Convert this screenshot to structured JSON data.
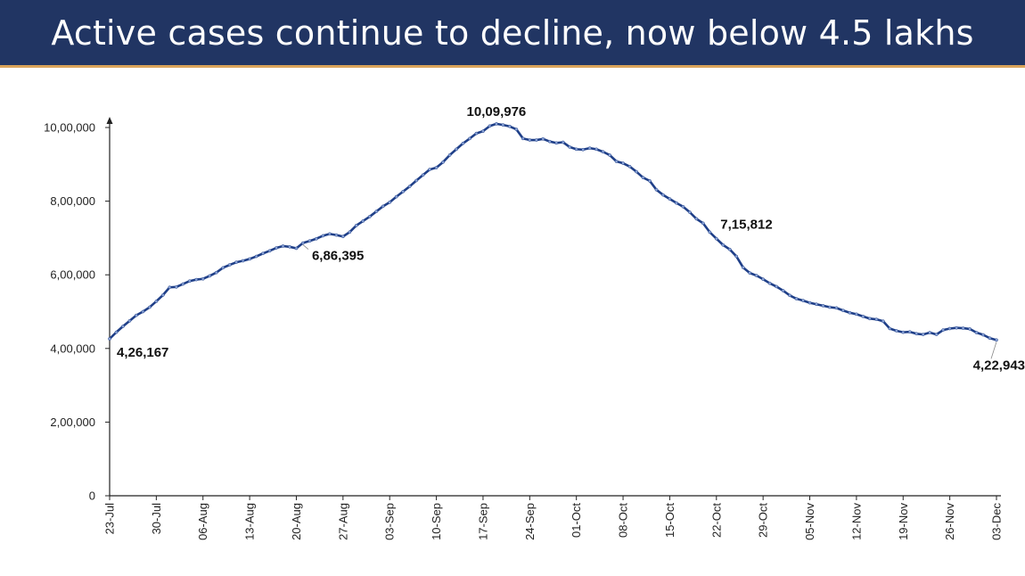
{
  "header": {
    "title": "Active cases continue to decline, now below 4.5 lakhs"
  },
  "colors": {
    "header_bg": "#213563",
    "header_accent": "#d9a35a",
    "line": "#1f3f88",
    "marker": "#8ea6d8"
  },
  "chart_data": {
    "type": "line",
    "title": "Active cases continue to decline, now below 4.5 lakhs",
    "xlabel": "",
    "ylabel": "",
    "ylim": [
      0,
      1000000
    ],
    "y_ticks": [
      0,
      200000,
      400000,
      600000,
      800000,
      1000000
    ],
    "y_tick_labels": [
      "0",
      "2,00,000",
      "4,00,000",
      "6,00,000",
      "8,00,000",
      "10,00,000"
    ],
    "x_tick_labels": [
      "23-Jul",
      "30-Jul",
      "06-Aug",
      "13-Aug",
      "20-Aug",
      "27-Aug",
      "03-Sep",
      "10-Sep",
      "17-Sep",
      "24-Sep",
      "01-Oct",
      "08-Oct",
      "15-Oct",
      "22-Oct",
      "29-Oct",
      "05-Nov",
      "12-Nov",
      "19-Nov",
      "26-Nov",
      "03-Dec"
    ],
    "grid": false,
    "legend": "none",
    "series": [
      {
        "points": [
          [
            "23-Jul",
            426167
          ],
          [
            "24-Jul",
            444000
          ],
          [
            "25-Jul",
            460000
          ],
          [
            "26-Jul",
            475000
          ],
          [
            "27-Jul",
            490000
          ],
          [
            "28-Jul",
            500000
          ],
          [
            "29-Jul",
            512000
          ],
          [
            "30-Jul",
            528000
          ],
          [
            "31-Jul",
            545000
          ],
          [
            "01-Aug",
            566000
          ],
          [
            "02-Aug",
            567000
          ],
          [
            "03-Aug",
            575000
          ],
          [
            "04-Aug",
            583000
          ],
          [
            "05-Aug",
            587000
          ],
          [
            "06-Aug",
            589000
          ],
          [
            "07-Aug",
            597000
          ],
          [
            "08-Aug",
            606000
          ],
          [
            "09-Aug",
            619000
          ],
          [
            "10-Aug",
            627000
          ],
          [
            "11-Aug",
            634000
          ],
          [
            "12-Aug",
            638000
          ],
          [
            "13-Aug",
            643000
          ],
          [
            "14-Aug",
            650000
          ],
          [
            "15-Aug",
            658000
          ],
          [
            "16-Aug",
            665000
          ],
          [
            "17-Aug",
            673000
          ],
          [
            "18-Aug",
            678000
          ],
          [
            "19-Aug",
            676000
          ],
          [
            "20-Aug",
            672000
          ],
          [
            "21-Aug",
            686395
          ],
          [
            "22-Aug",
            692000
          ],
          [
            "23-Aug",
            698000
          ],
          [
            "24-Aug",
            706000
          ],
          [
            "25-Aug",
            711000
          ],
          [
            "26-Aug",
            708000
          ],
          [
            "27-Aug",
            704000
          ],
          [
            "28-Aug",
            716000
          ],
          [
            "29-Aug",
            734000
          ],
          [
            "30-Aug",
            746000
          ],
          [
            "31-Aug",
            758000
          ],
          [
            "01-Sep",
            772000
          ],
          [
            "02-Sep",
            786000
          ],
          [
            "03-Sep",
            797000
          ],
          [
            "04-Sep",
            812000
          ],
          [
            "05-Sep",
            826000
          ],
          [
            "06-Sep",
            840000
          ],
          [
            "07-Sep",
            856000
          ],
          [
            "08-Sep",
            871000
          ],
          [
            "09-Sep",
            886000
          ],
          [
            "10-Sep",
            891000
          ],
          [
            "11-Sep",
            906000
          ],
          [
            "12-Sep",
            925000
          ],
          [
            "13-Sep",
            941000
          ],
          [
            "14-Sep",
            957000
          ],
          [
            "15-Sep",
            970000
          ],
          [
            "16-Sep",
            984000
          ],
          [
            "17-Sep",
            990000
          ],
          [
            "18-Sep",
            1004000
          ],
          [
            "19-Sep",
            1009976
          ],
          [
            "20-Sep",
            1007000
          ],
          [
            "21-Sep",
            1003000
          ],
          [
            "22-Sep",
            995000
          ],
          [
            "23-Sep",
            970000
          ],
          [
            "24-Sep",
            966000
          ],
          [
            "25-Sep",
            966000
          ],
          [
            "26-Sep",
            969000
          ],
          [
            "27-Sep",
            962000
          ],
          [
            "28-Sep",
            958000
          ],
          [
            "29-Sep",
            960000
          ],
          [
            "30-Sep",
            947000
          ],
          [
            "01-Oct",
            941000
          ],
          [
            "02-Oct",
            940000
          ],
          [
            "03-Oct",
            944000
          ],
          [
            "04-Oct",
            941000
          ],
          [
            "05-Oct",
            934000
          ],
          [
            "06-Oct",
            925000
          ],
          [
            "07-Oct",
            908000
          ],
          [
            "08-Oct",
            903000
          ],
          [
            "09-Oct",
            894000
          ],
          [
            "10-Oct",
            880000
          ],
          [
            "11-Oct",
            864000
          ],
          [
            "12-Oct",
            855000
          ],
          [
            "13-Oct",
            831000
          ],
          [
            "14-Oct",
            817000
          ],
          [
            "15-Oct",
            806000
          ],
          [
            "16-Oct",
            795000
          ],
          [
            "17-Oct",
            785000
          ],
          [
            "18-Oct",
            770000
          ],
          [
            "19-Oct",
            752000
          ],
          [
            "20-Oct",
            740000
          ],
          [
            "21-Oct",
            715812
          ],
          [
            "22-Oct",
            698000
          ],
          [
            "23-Oct",
            681000
          ],
          [
            "24-Oct",
            669000
          ],
          [
            "25-Oct",
            650000
          ],
          [
            "26-Oct",
            620000
          ],
          [
            "27-Oct",
            605000
          ],
          [
            "28-Oct",
            598000
          ],
          [
            "29-Oct",
            588000
          ],
          [
            "30-Oct",
            577000
          ],
          [
            "31-Oct",
            568000
          ],
          [
            "01-Nov",
            557000
          ],
          [
            "02-Nov",
            544000
          ],
          [
            "03-Nov",
            535000
          ],
          [
            "04-Nov",
            530000
          ],
          [
            "05-Nov",
            524000
          ],
          [
            "06-Nov",
            520000
          ],
          [
            "07-Nov",
            516000
          ],
          [
            "08-Nov",
            512000
          ],
          [
            "09-Nov",
            510000
          ],
          [
            "10-Nov",
            503000
          ],
          [
            "11-Nov",
            497000
          ],
          [
            "12-Nov",
            493000
          ],
          [
            "13-Nov",
            487000
          ],
          [
            "14-Nov",
            481000
          ],
          [
            "15-Nov",
            479000
          ],
          [
            "16-Nov",
            474000
          ],
          [
            "17-Nov",
            454000
          ],
          [
            "18-Nov",
            448000
          ],
          [
            "19-Nov",
            444000
          ],
          [
            "20-Nov",
            445000
          ],
          [
            "21-Nov",
            440000
          ],
          [
            "22-Nov",
            438000
          ],
          [
            "23-Nov",
            443000
          ],
          [
            "24-Nov",
            438000
          ],
          [
            "25-Nov",
            450000
          ],
          [
            "26-Nov",
            454000
          ],
          [
            "27-Nov",
            456000
          ],
          [
            "28-Nov",
            455000
          ],
          [
            "29-Nov",
            453000
          ],
          [
            "30-Nov",
            443000
          ],
          [
            "01-Dec",
            437000
          ],
          [
            "02-Dec",
            428000
          ],
          [
            "03-Dec",
            422943
          ]
        ]
      }
    ],
    "annotations": [
      {
        "label": "4,26,167",
        "x": "23-Jul",
        "y": 426167
      },
      {
        "label": "6,86,395",
        "x": "21-Aug",
        "y": 686395
      },
      {
        "label": "10,09,976",
        "x": "19-Sep",
        "y": 1009976
      },
      {
        "label": "7,15,812",
        "x": "21-Oct",
        "y": 715812
      },
      {
        "label": "4,22,943",
        "x": "03-Dec",
        "y": 422943
      }
    ]
  }
}
